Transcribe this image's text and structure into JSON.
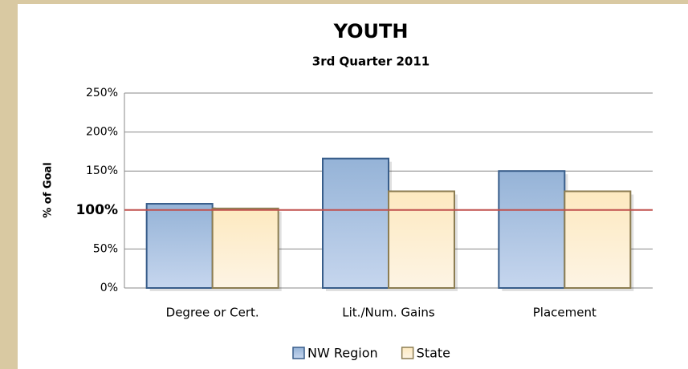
{
  "chart_data": {
    "type": "bar",
    "title": "YOUTH",
    "subtitle": "3rd Quarter 2011",
    "y_label": "% of Goal",
    "categories": [
      "Degree or Cert.",
      "Lit./Num. Gains",
      "Placement"
    ],
    "series": [
      {
        "name": "NW Region",
        "color": "#95b3d7",
        "values": [
          108,
          166,
          150
        ]
      },
      {
        "name": "State",
        "color": "#fde9c0",
        "values": [
          102,
          124,
          124
        ]
      }
    ],
    "ylim": [
      0,
      250
    ],
    "yticks": [
      {
        "value": 0,
        "label": "0%"
      },
      {
        "value": 50,
        "label": "50%"
      },
      {
        "value": 100,
        "label": "100%"
      },
      {
        "value": 150,
        "label": "150%"
      },
      {
        "value": 200,
        "label": "200%"
      },
      {
        "value": 250,
        "label": "250%"
      }
    ],
    "grid": true,
    "legend": "bottom",
    "reference_line": {
      "value": 100,
      "color": "#c0504d"
    }
  }
}
